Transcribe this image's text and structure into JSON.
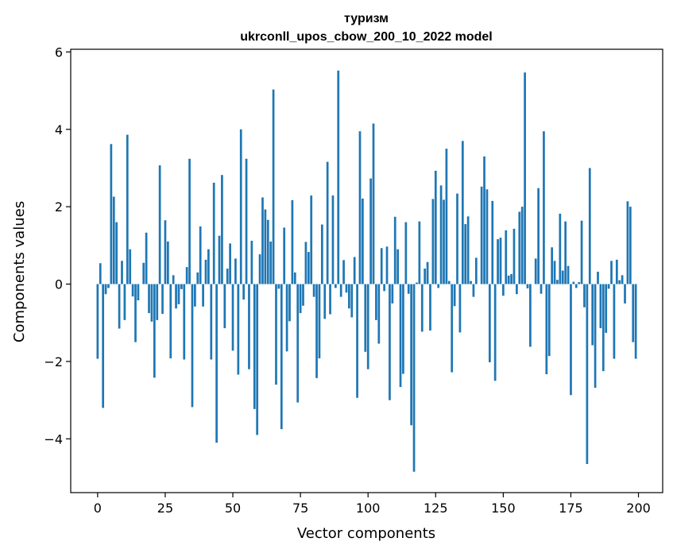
{
  "chart_data": {
    "type": "bar",
    "title": "туризм",
    "subtitle": "ukrconll_upos_cbow_200_10_2022 model",
    "xlabel": "Vector components",
    "ylabel": "Components values",
    "xlim": [
      -9.95,
      208.95
    ],
    "ylim": [
      -5.39,
      6.07
    ],
    "xticks": [
      0,
      25,
      50,
      75,
      100,
      125,
      150,
      175,
      200
    ],
    "yticks": [
      -4,
      -2,
      0,
      2,
      4,
      6
    ],
    "color": "#1f77b4",
    "values": [
      -1.93,
      0.54,
      -3.2,
      -0.26,
      -0.1,
      3.62,
      2.26,
      1.6,
      -1.15,
      0.6,
      -0.93,
      3.86,
      0.9,
      -0.32,
      -1.5,
      -0.42,
      0,
      0.55,
      1.33,
      -0.75,
      -0.97,
      -2.42,
      -0.93,
      3.07,
      -0.77,
      1.65,
      1.1,
      -1.92,
      0.23,
      -0.63,
      -0.52,
      -0.13,
      -1.95,
      0.44,
      3.24,
      -3.18,
      -0.58,
      0.3,
      1.49,
      -0.58,
      0.63,
      0.9,
      -1.95,
      2.62,
      -4.1,
      1.25,
      2.82,
      -1.14,
      0.4,
      1.05,
      -1.72,
      0.66,
      -2.34,
      4.0,
      -0.4,
      3.24,
      -2.2,
      1.12,
      -3.23,
      -3.9,
      0.77,
      2.24,
      1.93,
      1.66,
      1.1,
      5.03,
      -2.6,
      -0.12,
      -3.75,
      1.46,
      -1.74,
      -0.96,
      2.17,
      0.3,
      -3.06,
      -0.75,
      -0.56,
      1.09,
      0.83,
      2.29,
      -0.33,
      -2.43,
      -1.92,
      1.54,
      -0.9,
      3.16,
      -0.78,
      2.29,
      -0.1,
      5.52,
      -0.33,
      0.62,
      -0.22,
      -0.63,
      -0.86,
      0.7,
      -2.94,
      3.95,
      2.21,
      -1.75,
      -2.2,
      2.73,
      4.15,
      -0.93,
      -1.54,
      0.93,
      -0.18,
      0.97,
      -3.0,
      -0.5,
      1.74,
      0.9,
      -2.66,
      -2.32,
      1.6,
      -0.25,
      -3.65,
      -4.85,
      0.04,
      1.62,
      -1.23,
      0.4,
      0.57,
      -1.2,
      2.2,
      2.93,
      -0.1,
      2.55,
      2.18,
      3.5,
      0.08,
      -2.28,
      -0.57,
      2.34,
      -1.25,
      3.7,
      1.55,
      1.75,
      0.08,
      -0.33,
      0.68,
      0.0,
      2.52,
      3.3,
      2.45,
      -2.02,
      2.15,
      -2.5,
      1.16,
      1.2,
      -0.3,
      1.39,
      0.22,
      0.26,
      1.43,
      -0.26,
      1.87,
      2.0,
      5.47,
      -0.11,
      -1.62,
      0.0,
      0.66,
      2.48,
      -0.25,
      3.95,
      -2.33,
      -1.86,
      0.95,
      0.6,
      0.11,
      1.82,
      0.35,
      1.62,
      0.47,
      -2.87,
      0.06,
      -0.1,
      0.05,
      1.64,
      -0.6,
      -4.65,
      3.0,
      -1.58,
      -2.68,
      0.32,
      -1.14,
      -2.25,
      -1.26,
      -0.12,
      0.6,
      -1.93,
      0.63,
      0.1,
      0.23,
      -0.5,
      2.14,
      2.0,
      -1.5,
      -1.93
    ]
  }
}
